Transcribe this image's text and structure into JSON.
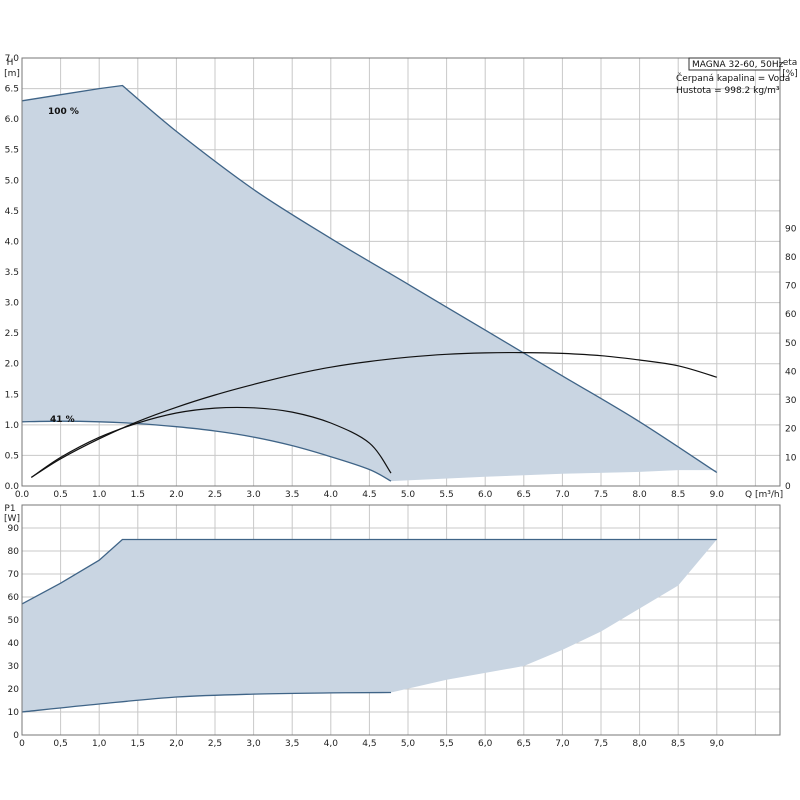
{
  "legend": {
    "model": "MAGNA 32-60, 50Hz",
    "liquid": "Čerpaná kapalina = Voda",
    "density": "Hustota = 998.2 kg/m³"
  },
  "chart_data": [
    {
      "type": "area",
      "name": "head",
      "y_axis_label": "H",
      "y_axis_unit": "[m]",
      "right_axis_label": "eta",
      "right_axis_unit": "[%]",
      "x_axis_label": "Q [m³/h]",
      "xlim": [
        0,
        10
      ],
      "ylim": [
        0,
        7.0
      ],
      "right_ylim": [
        0,
        100
      ],
      "x_ticks": [
        "0.0",
        "0.5",
        "1.0",
        "1.5",
        "2.0",
        "2.5",
        "3.0",
        "3.5",
        "4.0",
        "4.5",
        "5.0",
        "5.5",
        "6.0",
        "6.5",
        "7.0",
        "7.5",
        "8.0",
        "8.5",
        "9.0"
      ],
      "y_ticks": [
        "0.0",
        "0.5",
        "1.0",
        "1.5",
        "2.0",
        "2.5",
        "3.0",
        "3.5",
        "4.0",
        "4.5",
        "5.0",
        "5.5",
        "6.0",
        "6.5",
        "7.0"
      ],
      "right_ticks": [
        "0",
        "10",
        "20",
        "30",
        "40",
        "50",
        "60",
        "70",
        "80",
        "90"
      ],
      "grid": true,
      "curve_max": {
        "label": "100 %",
        "points": [
          [
            0,
            6.3
          ],
          [
            0.5,
            6.4
          ],
          [
            1.0,
            6.5
          ],
          [
            1.3,
            6.55
          ],
          [
            2.0,
            5.8
          ],
          [
            3.0,
            4.85
          ],
          [
            4.0,
            4.05
          ],
          [
            5.0,
            3.3
          ],
          [
            6.0,
            2.55
          ],
          [
            7.0,
            1.8
          ],
          [
            8.0,
            1.05
          ],
          [
            9.0,
            0.22
          ]
        ]
      },
      "curve_min": {
        "label": "41 %",
        "points": [
          [
            0,
            1.05
          ],
          [
            0.5,
            1.06
          ],
          [
            1.0,
            1.05
          ],
          [
            1.5,
            1.02
          ],
          [
            2.0,
            0.97
          ],
          [
            2.5,
            0.9
          ],
          [
            3.0,
            0.8
          ],
          [
            3.5,
            0.66
          ],
          [
            4.0,
            0.48
          ],
          [
            4.5,
            0.27
          ],
          [
            4.78,
            0.08
          ]
        ]
      },
      "boundary_bottom": [
        [
          4.78,
          0.08
        ],
        [
          6.0,
          0.15
        ],
        [
          7.0,
          0.2
        ],
        [
          8.0,
          0.23
        ],
        [
          8.5,
          0.26
        ],
        [
          9.0,
          0.26
        ]
      ],
      "efficiency_curves": [
        {
          "points": [
            [
              0.12,
              3
            ],
            [
              0.5,
              9.5
            ],
            [
              1.0,
              16.5
            ],
            [
              1.5,
              22.5
            ],
            [
              2.0,
              27.5
            ],
            [
              2.5,
              31.8
            ],
            [
              3.0,
              35.5
            ],
            [
              3.5,
              38.8
            ],
            [
              4.0,
              41.5
            ],
            [
              4.5,
              43.5
            ],
            [
              5.0,
              45
            ],
            [
              5.5,
              46
            ],
            [
              6.0,
              46.5
            ],
            [
              6.5,
              46.6
            ],
            [
              7.0,
              46.3
            ],
            [
              7.5,
              45.5
            ],
            [
              8.0,
              44
            ],
            [
              8.5,
              42
            ],
            [
              9.0,
              38
            ]
          ]
        },
        {
          "points": [
            [
              0.12,
              3
            ],
            [
              0.5,
              10
            ],
            [
              1.0,
              17
            ],
            [
              1.5,
              22
            ],
            [
              2.0,
              25.5
            ],
            [
              2.5,
              27.2
            ],
            [
              3.0,
              27.3
            ],
            [
              3.5,
              25.8
            ],
            [
              4.0,
              22
            ],
            [
              4.5,
              15
            ],
            [
              4.78,
              4.5
            ]
          ]
        }
      ]
    },
    {
      "type": "area",
      "name": "power",
      "y_axis_label": "P1",
      "y_axis_unit": "[W]",
      "xlim": [
        0,
        10
      ],
      "ylim": [
        0,
        90
      ],
      "y_ticks": [
        "0",
        "10",
        "20",
        "30",
        "40",
        "50",
        "60",
        "70",
        "80",
        "90"
      ],
      "x_ticks": [
        "0",
        "0,5",
        "1,0",
        "1,5",
        "2,0",
        "2,5",
        "3,0",
        "3,5",
        "4,0",
        "4,5",
        "5,0",
        "5,5",
        "6,0",
        "6,5",
        "7,0",
        "7,5",
        "8,0",
        "8,5",
        "9,0"
      ],
      "grid": true,
      "curve_max": [
        [
          0,
          57
        ],
        [
          0.5,
          66
        ],
        [
          1.0,
          76
        ],
        [
          1.3,
          85
        ],
        [
          9.0,
          85
        ]
      ],
      "curve_min": [
        [
          0,
          10
        ],
        [
          1.0,
          13.5
        ],
        [
          2.0,
          16.5
        ],
        [
          3.0,
          17.8
        ],
        [
          4.0,
          18.3
        ],
        [
          4.78,
          18.5
        ]
      ],
      "boundary_bottom": [
        [
          4.78,
          18.5
        ],
        [
          5.5,
          24
        ],
        [
          6.0,
          27
        ],
        [
          6.5,
          30
        ],
        [
          7.0,
          37
        ],
        [
          7.5,
          45
        ],
        [
          8.0,
          55
        ],
        [
          8.5,
          65
        ],
        [
          9.0,
          85
        ]
      ]
    }
  ]
}
